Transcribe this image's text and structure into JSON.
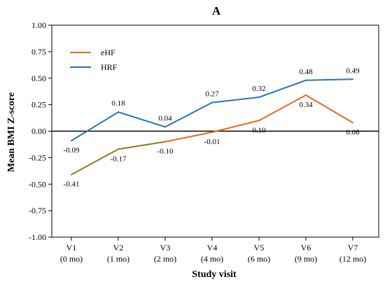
{
  "chart_data": {
    "type": "line",
    "title": "A",
    "xlabel": "Study visit",
    "ylabel": "Mean BMI  Z-score",
    "ylim": [
      -1.0,
      1.0
    ],
    "yticks": [
      "1.00",
      "0.75",
      "0.50",
      "0.25",
      "0.00",
      "-0.25",
      "-0.50",
      "-0.75",
      "-1.00"
    ],
    "categories": [
      {
        "visit": "V1",
        "period": "(0 mo)"
      },
      {
        "visit": "V2",
        "period": "(1 mo)"
      },
      {
        "visit": "V3",
        "period": "(2 mo)"
      },
      {
        "visit": "V4",
        "period": "(4 mo)"
      },
      {
        "visit": "V5",
        "period": "(6 mo)"
      },
      {
        "visit": "V6",
        "period": "(9 mo)"
      },
      {
        "visit": "V7",
        "period": "(12 mo)"
      }
    ],
    "series": [
      {
        "name": "eHF",
        "color": "#e86a1a",
        "values": [
          -0.41,
          -0.17,
          -0.1,
          -0.01,
          0.1,
          0.34,
          0.08
        ],
        "labels": [
          "-0.41",
          "-0.17",
          "-0.10",
          "-0.01",
          "0.10",
          "0.34",
          "0.08"
        ]
      },
      {
        "name": "HRF",
        "color": "#2872b8",
        "values": [
          -0.09,
          0.18,
          0.04,
          0.27,
          0.32,
          0.48,
          0.49
        ],
        "labels": [
          "-0.09",
          "0.18",
          "0.04",
          "0.27",
          "0.32",
          "0.48",
          "0.49"
        ]
      }
    ],
    "overlap_color": "#8c7a22",
    "legend_position": "top-left",
    "zero_line": true,
    "grid": false
  }
}
